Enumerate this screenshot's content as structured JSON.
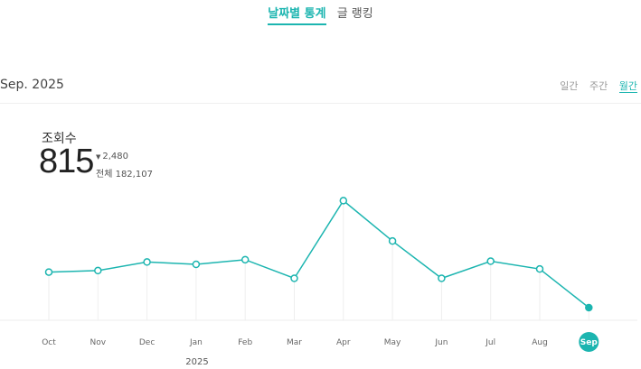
{
  "tabs": [
    {
      "label": "날짜별 통계",
      "active": true
    },
    {
      "label": "글 랭킹",
      "active": false
    }
  ],
  "period": "Sep. 2025",
  "periodicity": [
    {
      "label": "일간",
      "active": false
    },
    {
      "label": "주간",
      "active": false
    },
    {
      "label": "월간",
      "active": true
    }
  ],
  "metric": {
    "label": "조회수",
    "value": "815",
    "change": "2,480",
    "total": "전체 182,107"
  },
  "colors": {
    "accent": "#1cb5b0"
  },
  "chart_data": {
    "type": "line",
    "categories": [
      "Oct",
      "Nov",
      "Dec",
      "Jan",
      "Feb",
      "Mar",
      "Apr",
      "May",
      "Jun",
      "Jul",
      "Aug",
      "Sep"
    ],
    "values": [
      3100,
      3200,
      3750,
      3600,
      3900,
      2700,
      7700,
      5100,
      2700,
      3800,
      3300,
      815
    ],
    "year_label": "2025",
    "highlight_index": 11,
    "ylim": [
      0,
      9000
    ]
  }
}
